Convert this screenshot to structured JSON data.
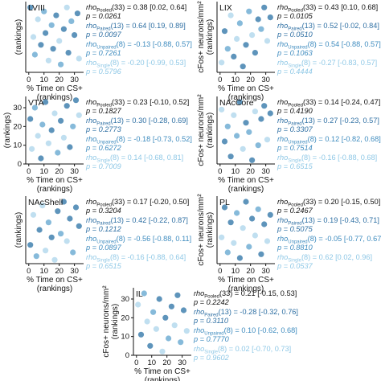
{
  "colors": {
    "pooled": "#111111",
    "paired": "#2e6fa3",
    "unpaired": "#3f8cbf",
    "single": "#8fc8e6",
    "paired_dot": "#4d88b4",
    "unpaired_dot": "#79b3d6",
    "single_dot": "#b9dcee"
  },
  "chart_data": [
    {
      "type": "scatter",
      "title": "LVIII",
      "xlabel": [
        "% Time on CS+",
        "(rankings)"
      ],
      "ylabel": [
        "(rankings)"
      ],
      "xticks": [
        "0",
        "10",
        "20",
        "30"
      ],
      "yticks": [],
      "xlim": [
        -2,
        36
      ],
      "ylim": [
        0,
        36
      ],
      "stats": [
        {
          "group": "pooled",
          "rho_prefix": "rho",
          "rho_sub": "Pooled",
          "rho_rest": "(33) = 0.38 [0.02, 0.64]",
          "p": "p = 0.0261"
        },
        {
          "group": "paired",
          "rho_prefix": "rho",
          "rho_sub": "Paired",
          "rho_rest": "(13) = 0.64 [0.19, 0.89]",
          "p": "p = 0.0097"
        },
        {
          "group": "unpaired",
          "rho_prefix": "rho",
          "rho_sub": "Unpaired",
          "rho_rest": "(8) = -0.13 [-0.88, 0.57]",
          "p": "p = 0.7261"
        },
        {
          "group": "single",
          "rho_prefix": "rho",
          "rho_sub": "Single",
          "rho_rest": "(8) = -0.20 [-0.99, 0.53]",
          "p": "p = 0.5796"
        }
      ],
      "points": [
        {
          "x": 1,
          "y": 33,
          "g": "paired"
        },
        {
          "x": 3,
          "y": 18,
          "g": "single"
        },
        {
          "x": 4,
          "y": 9,
          "g": "unpaired"
        },
        {
          "x": 6,
          "y": 27,
          "g": "single"
        },
        {
          "x": 8,
          "y": 14,
          "g": "paired"
        },
        {
          "x": 10,
          "y": 31,
          "g": "unpaired"
        },
        {
          "x": 11,
          "y": 20,
          "g": "paired"
        },
        {
          "x": 13,
          "y": 6,
          "g": "single"
        },
        {
          "x": 15,
          "y": 24,
          "g": "unpaired"
        },
        {
          "x": 16,
          "y": 12,
          "g": "paired"
        },
        {
          "x": 18,
          "y": 29,
          "g": "paired"
        },
        {
          "x": 20,
          "y": 16,
          "g": "single"
        },
        {
          "x": 21,
          "y": 4,
          "g": "unpaired"
        },
        {
          "x": 23,
          "y": 22,
          "g": "paired"
        },
        {
          "x": 25,
          "y": 33,
          "g": "single"
        },
        {
          "x": 26,
          "y": 10,
          "g": "paired"
        },
        {
          "x": 28,
          "y": 26,
          "g": "unpaired"
        },
        {
          "x": 30,
          "y": 19,
          "g": "paired"
        },
        {
          "x": 32,
          "y": 30,
          "g": "paired"
        },
        {
          "x": 33,
          "y": 7,
          "g": "single"
        }
      ]
    },
    {
      "type": "scatter",
      "title": "LIX",
      "xlabel": [
        "% Time on CS+",
        "(rankings)"
      ],
      "ylabel": [
        "cFos+ neurons/mm²",
        "(rankings)"
      ],
      "xticks": [
        "0",
        "10",
        "20",
        "30"
      ],
      "yticks": [],
      "xlim": [
        -2,
        36
      ],
      "ylim": [
        0,
        36
      ],
      "stats": [
        {
          "group": "pooled",
          "rho_prefix": "rho",
          "rho_sub": "Pooled",
          "rho_rest": "(33) = 0.43 [0.10, 0.68]",
          "p": "p = 0.0105"
        },
        {
          "group": "paired",
          "rho_prefix": "rho",
          "rho_sub": "Paired",
          "rho_rest": "(13) = 0.52 [-0.02, 0.84]",
          "p": "p = 0.0510"
        },
        {
          "group": "unpaired",
          "rho_prefix": "rho",
          "rho_sub": "Unpaired",
          "rho_rest": "(8) = 0.54 [-0.88, 0.57]",
          "p": "p = 0.1063"
        },
        {
          "group": "single",
          "rho_prefix": "rho",
          "rho_sub": "Single",
          "rho_rest": "(8) = -0.27 [-0.83, 0.57]",
          "p": "p = 0.4444"
        }
      ],
      "points": [
        {
          "x": 1,
          "y": 5,
          "g": "single"
        },
        {
          "x": 3,
          "y": 21,
          "g": "paired"
        },
        {
          "x": 5,
          "y": 12,
          "g": "unpaired"
        },
        {
          "x": 7,
          "y": 29,
          "g": "single"
        },
        {
          "x": 9,
          "y": 8,
          "g": "paired"
        },
        {
          "x": 11,
          "y": 17,
          "g": "single"
        },
        {
          "x": 13,
          "y": 25,
          "g": "unpaired"
        },
        {
          "x": 15,
          "y": 3,
          "g": "paired"
        },
        {
          "x": 17,
          "y": 14,
          "g": "paired"
        },
        {
          "x": 19,
          "y": 31,
          "g": "unpaired"
        },
        {
          "x": 21,
          "y": 19,
          "g": "single"
        },
        {
          "x": 23,
          "y": 10,
          "g": "paired"
        },
        {
          "x": 25,
          "y": 27,
          "g": "paired"
        },
        {
          "x": 27,
          "y": 22,
          "g": "unpaired"
        },
        {
          "x": 29,
          "y": 33,
          "g": "paired"
        },
        {
          "x": 31,
          "y": 16,
          "g": "single"
        },
        {
          "x": 33,
          "y": 28,
          "g": "paired"
        }
      ]
    },
    {
      "type": "scatter",
      "title": "VTA",
      "xlabel": [
        "% Time on CS+",
        "(rankings)"
      ],
      "ylabel": [
        "(rankings)"
      ],
      "xticks": [
        "0",
        "10",
        "20",
        "30"
      ],
      "yticks": [
        "0",
        "10",
        "20",
        "30"
      ],
      "xlim": [
        -2,
        36
      ],
      "ylim": [
        0,
        36
      ],
      "stats": [
        {
          "group": "pooled",
          "rho_prefix": "rho",
          "rho_sub": "Pooled",
          "rho_rest": "(33) = 0.23 [-0.10, 0.52]",
          "p": "p = 0.1827"
        },
        {
          "group": "paired",
          "rho_prefix": "rho",
          "rho_sub": "Paired",
          "rho_rest": "(13) = 0.30 [-0.28, 0.69]",
          "p": "p = 0.2773"
        },
        {
          "group": "unpaired",
          "rho_prefix": "rho",
          "rho_sub": "Unpaired",
          "rho_rest": "(8) = -0.18 [-0.73, 0.52]",
          "p": "p = 0.6272"
        },
        {
          "group": "single",
          "rho_prefix": "rho",
          "rho_sub": "Single",
          "rho_rest": "(8) = 0.14 [-0.68, 0.81]",
          "p": "p = 0.7009"
        }
      ],
      "points": [
        {
          "x": 1,
          "y": 24,
          "g": "paired"
        },
        {
          "x": 2,
          "y": 8,
          "g": "single"
        },
        {
          "x": 4,
          "y": 30,
          "g": "unpaired"
        },
        {
          "x": 6,
          "y": 15,
          "g": "single"
        },
        {
          "x": 8,
          "y": 3,
          "g": "paired"
        },
        {
          "x": 9,
          "y": 21,
          "g": "unpaired"
        },
        {
          "x": 11,
          "y": 33,
          "g": "paired"
        },
        {
          "x": 13,
          "y": 11,
          "g": "single"
        },
        {
          "x": 15,
          "y": 18,
          "g": "paired"
        },
        {
          "x": 17,
          "y": 27,
          "g": "single"
        },
        {
          "x": 19,
          "y": 6,
          "g": "unpaired"
        },
        {
          "x": 21,
          "y": 23,
          "g": "paired"
        },
        {
          "x": 23,
          "y": 14,
          "g": "single"
        },
        {
          "x": 25,
          "y": 31,
          "g": "paired"
        },
        {
          "x": 27,
          "y": 9,
          "g": "paired"
        },
        {
          "x": 29,
          "y": 20,
          "g": "unpaired"
        },
        {
          "x": 31,
          "y": 34,
          "g": "paired"
        },
        {
          "x": 33,
          "y": 26,
          "g": "single"
        }
      ]
    },
    {
      "type": "scatter",
      "title": "NAcCore",
      "xlabel": [
        "% Time on CS+",
        "(rankings)"
      ],
      "ylabel": [
        "cFos+ neurons/mm²",
        "(rankings)"
      ],
      "xticks": [
        "0",
        "10",
        "20",
        "30"
      ],
      "yticks": [],
      "xlim": [
        -2,
        36
      ],
      "ylim": [
        0,
        36
      ],
      "stats": [
        {
          "group": "pooled",
          "rho_prefix": "rho",
          "rho_sub": "Pooled",
          "rho_rest": "(33) = 0.14 [-0.24, 0.47]",
          "p": "p = 0.4190"
        },
        {
          "group": "paired",
          "rho_prefix": "rho",
          "rho_sub": "Paired",
          "rho_rest": "(13) = 0.27 [-0.23, 0.57]",
          "p": "p = 0.3307"
        },
        {
          "group": "unpaired",
          "rho_prefix": "rho",
          "rho_sub": "Unpaired",
          "rho_rest": "(8) = 0.12 [-0.82, 0.68]",
          "p": "p = 0.7514"
        },
        {
          "group": "single",
          "rho_prefix": "rho",
          "rho_sub": "Single",
          "rho_rest": "(8) = -0.16 [-0.88, 0.68]",
          "p": "p = 0.6515"
        }
      ],
      "points": [
        {
          "x": 1,
          "y": 29,
          "g": "single"
        },
        {
          "x": 3,
          "y": 12,
          "g": "paired"
        },
        {
          "x": 5,
          "y": 20,
          "g": "unpaired"
        },
        {
          "x": 7,
          "y": 4,
          "g": "paired"
        },
        {
          "x": 9,
          "y": 26,
          "g": "single"
        },
        {
          "x": 11,
          "y": 15,
          "g": "unpaired"
        },
        {
          "x": 13,
          "y": 33,
          "g": "paired"
        },
        {
          "x": 15,
          "y": 8,
          "g": "single"
        },
        {
          "x": 17,
          "y": 22,
          "g": "paired"
        },
        {
          "x": 19,
          "y": 17,
          "g": "unpaired"
        },
        {
          "x": 21,
          "y": 2,
          "g": "paired"
        },
        {
          "x": 23,
          "y": 28,
          "g": "single"
        },
        {
          "x": 25,
          "y": 10,
          "g": "unpaired"
        },
        {
          "x": 27,
          "y": 24,
          "g": "paired"
        },
        {
          "x": 29,
          "y": 31,
          "g": "paired"
        },
        {
          "x": 31,
          "y": 13,
          "g": "single"
        },
        {
          "x": 33,
          "y": 27,
          "g": "paired"
        }
      ]
    },
    {
      "type": "scatter",
      "title": "NAcShell",
      "xlabel": [
        "% Time on CS+",
        "(rankings)"
      ],
      "ylabel": [
        "(rankings)"
      ],
      "xticks": [
        "0",
        "10",
        "20",
        "30"
      ],
      "yticks": [],
      "xlim": [
        -2,
        36
      ],
      "ylim": [
        0,
        36
      ],
      "stats": [
        {
          "group": "pooled",
          "rho_prefix": "rho",
          "rho_sub": "Pooled",
          "rho_rest": "(33) = 0.17 [-0.20, 0.50]",
          "p": "p = 0.3204"
        },
        {
          "group": "paired",
          "rho_prefix": "rho",
          "rho_sub": "Paired",
          "rho_rest": "(13) = 0.42 [-0.22, 0.87]",
          "p": "p = 0.1212"
        },
        {
          "group": "unpaired",
          "rho_prefix": "rho",
          "rho_sub": "Unpaired",
          "rho_rest": "(8) = -0.56 [-0.88, 0.11]",
          "p": "p = 0.0897"
        },
        {
          "group": "single",
          "rho_prefix": "rho",
          "rho_sub": "Single",
          "rho_rest": "(8) = -0.16 [-0.88, 0.64]",
          "p": "p = 0.6515"
        }
      ],
      "points": [
        {
          "x": 1,
          "y": 10,
          "g": "paired"
        },
        {
          "x": 3,
          "y": 26,
          "g": "single"
        },
        {
          "x": 5,
          "y": 4,
          "g": "unpaired"
        },
        {
          "x": 7,
          "y": 18,
          "g": "paired"
        },
        {
          "x": 9,
          "y": 31,
          "g": "single"
        },
        {
          "x": 11,
          "y": 7,
          "g": "single"
        },
        {
          "x": 13,
          "y": 22,
          "g": "unpaired"
        },
        {
          "x": 15,
          "y": 14,
          "g": "paired"
        },
        {
          "x": 17,
          "y": 2,
          "g": "single"
        },
        {
          "x": 19,
          "y": 28,
          "g": "paired"
        },
        {
          "x": 21,
          "y": 16,
          "g": "unpaired"
        },
        {
          "x": 23,
          "y": 33,
          "g": "paired"
        },
        {
          "x": 25,
          "y": 12,
          "g": "single"
        },
        {
          "x": 27,
          "y": 24,
          "g": "paired"
        },
        {
          "x": 29,
          "y": 6,
          "g": "unpaired"
        },
        {
          "x": 31,
          "y": 30,
          "g": "paired"
        },
        {
          "x": 33,
          "y": 20,
          "g": "paired"
        }
      ]
    },
    {
      "type": "scatter",
      "title": "PL",
      "xlabel": [
        "% Time on CS+",
        "(rankings)"
      ],
      "ylabel": [
        "cFos+ neurons/mm²",
        "(rankings)"
      ],
      "xticks": [
        "0",
        "10",
        "20",
        "30"
      ],
      "yticks": [],
      "xlim": [
        -2,
        36
      ],
      "ylim": [
        0,
        36
      ],
      "stats": [
        {
          "group": "pooled",
          "rho_prefix": "rho",
          "rho_sub": "Pooled",
          "rho_rest": "(33) = 0.20 [-0.15, 0.50]",
          "p": "p = 0.2467"
        },
        {
          "group": "paired",
          "rho_prefix": "rho",
          "rho_sub": "Paired",
          "rho_rest": "(13) = 0.19 [-0.43, 0.71]",
          "p": "p = 0.5075"
        },
        {
          "group": "unpaired",
          "rho_prefix": "rho",
          "rho_sub": "Unpaired",
          "rho_rest": "(8) = -0.05 [-0.77, 0.67]",
          "p": "p = 0.8810"
        },
        {
          "group": "single",
          "rho_prefix": "rho",
          "rho_sub": "Single",
          "rho_rest": "(8) = 0.62 [0.02, 0.96]",
          "p": "p = 0.0537"
        }
      ],
      "points": [
        {
          "x": 1,
          "y": 14,
          "g": "single"
        },
        {
          "x": 3,
          "y": 30,
          "g": "paired"
        },
        {
          "x": 5,
          "y": 6,
          "g": "unpaired"
        },
        {
          "x": 7,
          "y": 22,
          "g": "paired"
        },
        {
          "x": 9,
          "y": 11,
          "g": "single"
        },
        {
          "x": 11,
          "y": 27,
          "g": "unpaired"
        },
        {
          "x": 13,
          "y": 3,
          "g": "paired"
        },
        {
          "x": 15,
          "y": 19,
          "g": "single"
        },
        {
          "x": 17,
          "y": 33,
          "g": "paired"
        },
        {
          "x": 19,
          "y": 9,
          "g": "unpaired"
        },
        {
          "x": 21,
          "y": 24,
          "g": "paired"
        },
        {
          "x": 23,
          "y": 15,
          "g": "single"
        },
        {
          "x": 25,
          "y": 29,
          "g": "unpaired"
        },
        {
          "x": 27,
          "y": 5,
          "g": "paired"
        },
        {
          "x": 29,
          "y": 21,
          "g": "paired"
        },
        {
          "x": 31,
          "y": 12,
          "g": "single"
        },
        {
          "x": 33,
          "y": 26,
          "g": "paired"
        }
      ]
    },
    {
      "type": "scatter",
      "title": "IL",
      "xlabel": [
        "% Time on CS+",
        "(rankings)"
      ],
      "ylabel": [
        "cFos+ neurons/mm²",
        "(rankings)"
      ],
      "xticks": [
        "0",
        "10",
        "20",
        "30"
      ],
      "yticks": [
        "0",
        "10",
        "20",
        "30"
      ],
      "xlim": [
        -2,
        36
      ],
      "ylim": [
        0,
        36
      ],
      "stats": [
        {
          "group": "pooled",
          "rho_prefix": "rho",
          "rho_sub": "Pooled",
          "rho_rest": "(33) = 0.21 [-0.15, 0.53]",
          "p": "p = 0.2242"
        },
        {
          "group": "paired",
          "rho_prefix": "rho",
          "rho_sub": "Paired",
          "rho_rest": "(13) = -0.28 [-0.32, 0.76]",
          "p": "p = 0.3110"
        },
        {
          "group": "unpaired",
          "rho_prefix": "rho",
          "rho_sub": "Unpaired",
          "rho_rest": "(8) = 0.10 [-0.62, 0.68]",
          "p": "p = 0.7770"
        },
        {
          "group": "single",
          "rho_prefix": "rho",
          "rho_sub": "Single",
          "rho_rest": "(8) = 0.02 [-0.70, 0.73]",
          "p": "p = 0.9602"
        }
      ],
      "points": [
        {
          "x": 1,
          "y": 27,
          "g": "single"
        },
        {
          "x": 3,
          "y": 11,
          "g": "paired"
        },
        {
          "x": 5,
          "y": 33,
          "g": "unpaired"
        },
        {
          "x": 7,
          "y": 18,
          "g": "single"
        },
        {
          "x": 9,
          "y": 5,
          "g": "paired"
        },
        {
          "x": 11,
          "y": 23,
          "g": "unpaired"
        },
        {
          "x": 13,
          "y": 14,
          "g": "single"
        },
        {
          "x": 15,
          "y": 30,
          "g": "paired"
        },
        {
          "x": 17,
          "y": 2,
          "g": "single"
        },
        {
          "x": 19,
          "y": 20,
          "g": "paired"
        },
        {
          "x": 21,
          "y": 9,
          "g": "unpaired"
        },
        {
          "x": 23,
          "y": 26,
          "g": "paired"
        },
        {
          "x": 25,
          "y": 16,
          "g": "single"
        },
        {
          "x": 27,
          "y": 32,
          "g": "paired"
        },
        {
          "x": 29,
          "y": 7,
          "g": "unpaired"
        },
        {
          "x": 31,
          "y": 24,
          "g": "paired"
        },
        {
          "x": 33,
          "y": 13,
          "g": "single"
        }
      ]
    }
  ]
}
